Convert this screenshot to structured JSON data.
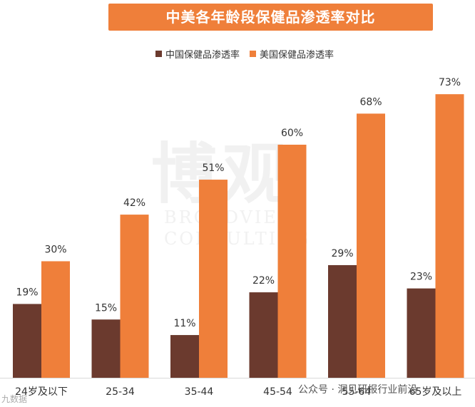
{
  "title": "中美各年龄段保健品渗透率对比",
  "watermark": {
    "main": "博观",
    "sub1": "BROADVIEW",
    "sub2": "CONSULTING"
  },
  "footer": {
    "source": "公众号 · 洞见研报行业前沿",
    "left_mark": "九数据"
  },
  "colors": {
    "china": "#6b3a2e",
    "us": "#ef7f3a",
    "banner": "#ef7f3a"
  },
  "chart_data": {
    "type": "bar",
    "title": "中美各年龄段保健品渗透率对比",
    "categories": [
      "24岁及以下",
      "25-34",
      "35-44",
      "45-54",
      "55-64",
      "65岁及以上"
    ],
    "series": [
      {
        "name": "中国保健品渗透率",
        "values": [
          19,
          15,
          11,
          22,
          29,
          23
        ],
        "labels": [
          "19%",
          "15%",
          "11%",
          "22%",
          "29%",
          "23%"
        ]
      },
      {
        "name": "美国保健品渗透率",
        "values": [
          30,
          42,
          51,
          60,
          68,
          73
        ],
        "labels": [
          "30%",
          "42%",
          "51%",
          "60%",
          "68%",
          "73%"
        ]
      }
    ],
    "ylim": [
      0,
      80
    ],
    "grid": false,
    "legend_position": "top"
  }
}
